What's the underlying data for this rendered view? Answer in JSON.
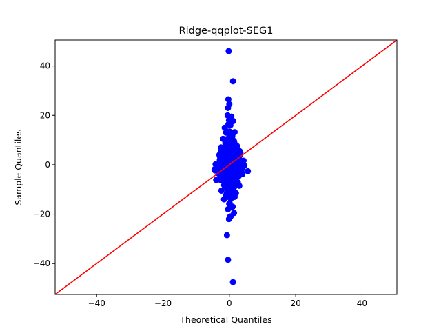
{
  "chart_data": {
    "type": "scatter",
    "title": "Ridge-qqplot-SEG1",
    "xlabel": "Theoretical Quantiles",
    "ylabel": "Sample Quantiles",
    "xlim": [
      -52.5,
      50.5
    ],
    "ylim": [
      -52.5,
      50.5
    ],
    "xticks": [
      -40,
      -20,
      0,
      20,
      40
    ],
    "yticks": [
      -40,
      -20,
      0,
      20,
      40
    ],
    "xtick_labels": [
      "−40",
      "−20",
      "0",
      "20",
      "40"
    ],
    "ytick_labels": [
      "−40",
      "−20",
      "0",
      "20",
      "40"
    ],
    "grid": false,
    "legend": "none",
    "colors": {
      "points": "#0000ff",
      "reference_line": "#ff0000"
    },
    "reference_line": {
      "x": [
        -52.5,
        50.5
      ],
      "y": [
        -52.5,
        50.5
      ]
    },
    "series": [
      {
        "points": [
          [
            -0.2,
            46.0
          ],
          [
            1.1,
            33.8
          ],
          [
            -0.3,
            26.5
          ],
          [
            0.0,
            24.5
          ],
          [
            -0.4,
            23.0
          ],
          [
            -0.5,
            20.0
          ],
          [
            0.6,
            19.5
          ],
          [
            1.2,
            17.7
          ],
          [
            -0.1,
            18.0
          ],
          [
            -1.4,
            15.0
          ],
          [
            0.3,
            16.0
          ],
          [
            -1.0,
            13.0
          ],
          [
            1.6,
            13.2
          ],
          [
            -1.9,
            10.5
          ],
          [
            0.9,
            11.5
          ],
          [
            2.3,
            7.6
          ],
          [
            -2.5,
            7.0
          ],
          [
            0.2,
            8.5
          ],
          [
            -3.0,
            4.0
          ],
          [
            3.1,
            5.2
          ],
          [
            -0.4,
            4.2
          ],
          [
            1.7,
            2.0
          ],
          [
            -3.6,
            0.0
          ],
          [
            3.6,
            0.2
          ],
          [
            0.0,
            0.0
          ],
          [
            -1.9,
            -1.0
          ],
          [
            2.7,
            -2.7
          ],
          [
            -3.1,
            -3.7
          ],
          [
            0.4,
            -5.0
          ],
          [
            -2.7,
            -6.0
          ],
          [
            3.0,
            -8.5
          ],
          [
            -0.6,
            -9.0
          ],
          [
            -2.4,
            -10.5
          ],
          [
            2.0,
            -11.5
          ],
          [
            -1.1,
            -12.5
          ],
          [
            1.6,
            -13.0
          ],
          [
            -1.6,
            -14.0
          ],
          [
            0.1,
            -15.5
          ],
          [
            1.0,
            -17.0
          ],
          [
            -0.4,
            -18.0
          ],
          [
            1.4,
            -19.5
          ],
          [
            0.2,
            -21.0
          ],
          [
            -0.1,
            -22.0
          ],
          [
            -0.7,
            -28.5
          ],
          [
            -0.4,
            -38.5
          ],
          [
            1.1,
            -47.5
          ]
        ]
      }
    ]
  }
}
